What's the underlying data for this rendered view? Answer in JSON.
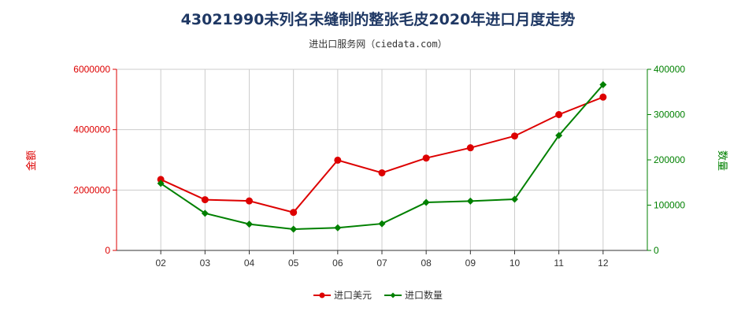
{
  "title": "43021990未列名未缝制的整张毛皮2020年进口月度走势",
  "subtitle": "进出口服务网（ciedata.com）",
  "colors": {
    "left_axis": "#dd0000",
    "right_axis": "#008000",
    "grid": "#cccccc"
  },
  "chart_data": {
    "type": "line",
    "categories": [
      "02",
      "03",
      "04",
      "05",
      "06",
      "07",
      "08",
      "09",
      "10",
      "11",
      "12"
    ],
    "y_left": {
      "label": "金额",
      "range": [
        0,
        6000000
      ],
      "ticks": [
        "0",
        "2000000",
        "4000000",
        "6000000"
      ]
    },
    "y_right": {
      "label": "数量",
      "range": [
        0,
        400000
      ],
      "ticks": [
        "0",
        "100000",
        "200000",
        "300000",
        "400000"
      ]
    },
    "series": [
      {
        "name": "进口美元",
        "axis": "left",
        "color": "#dd0000",
        "marker": "circle",
        "values": [
          2350000,
          1680000,
          1640000,
          1260000,
          2990000,
          2570000,
          3060000,
          3400000,
          3790000,
          4500000,
          5080000
        ]
      },
      {
        "name": "进口数量",
        "axis": "right",
        "color": "#008000",
        "marker": "diamond",
        "values": [
          148000,
          82000,
          58000,
          47000,
          50000,
          59000,
          106000,
          109000,
          113000,
          254000,
          366000
        ]
      }
    ],
    "grid": true,
    "legend_position": "bottom-center"
  }
}
